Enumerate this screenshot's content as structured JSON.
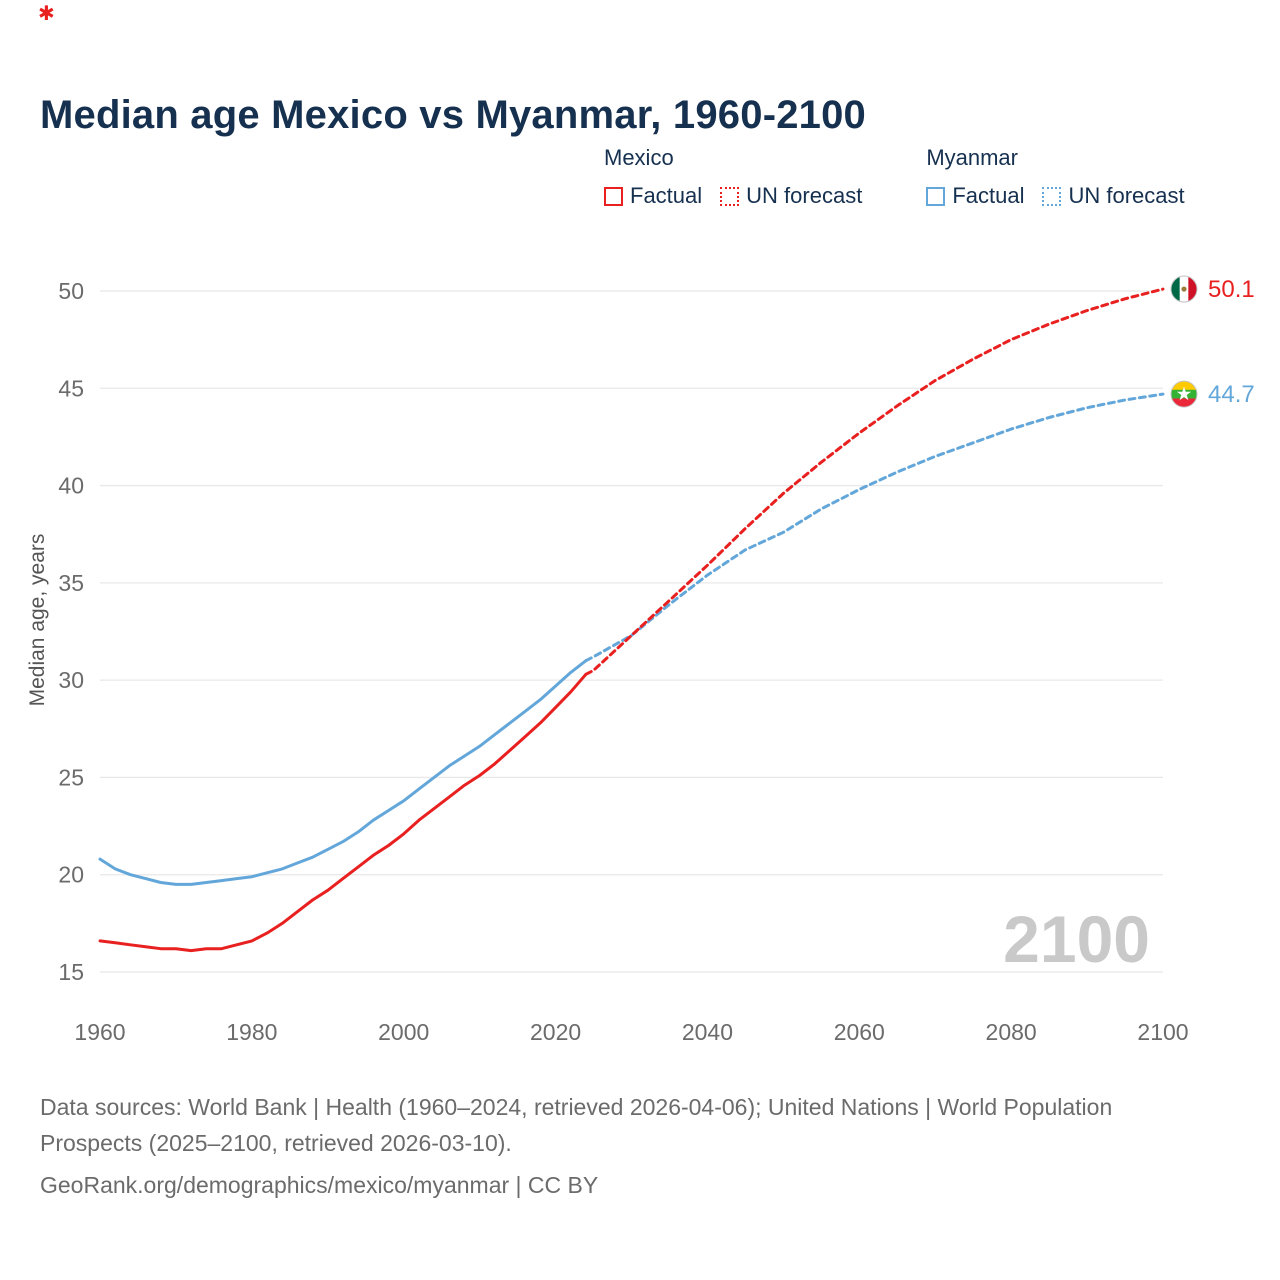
{
  "brand": {
    "icon_name": "georank-logo",
    "glyph": "✱"
  },
  "title": "Median age Mexico vs Myanmar, 1960-2100",
  "legend": {
    "groups": [
      {
        "label": "Mexico",
        "items": [
          {
            "label": "Factual",
            "style": "solid"
          },
          {
            "label": "UN forecast",
            "style": "dotted"
          }
        ]
      },
      {
        "label": "Myanmar",
        "items": [
          {
            "label": "Factual",
            "style": "solid"
          },
          {
            "label": "UN forecast",
            "style": "dotted"
          }
        ]
      }
    ]
  },
  "chart_data": {
    "type": "line",
    "title": "Median age Mexico vs Myanmar, 1960-2100",
    "xlabel": "",
    "ylabel": "Median age, years",
    "xlim": [
      1960,
      2100
    ],
    "ylim": [
      15,
      50
    ],
    "xticks": [
      1960,
      1980,
      2000,
      2020,
      2040,
      2060,
      2080,
      2100
    ],
    "yticks": [
      15,
      20,
      25,
      30,
      35,
      40,
      45,
      50
    ],
    "grid": "horizontal",
    "legend_position": "top-right",
    "watermark": "2100",
    "colors": {
      "mexico": "#e8201f",
      "myanmar": "#63a7da"
    },
    "series": [
      {
        "name": "Myanmar Factual",
        "country": "myanmar",
        "style": "solid",
        "points": [
          [
            1960,
            20.8
          ],
          [
            1962,
            20.3
          ],
          [
            1964,
            20.0
          ],
          [
            1966,
            19.8
          ],
          [
            1968,
            19.6
          ],
          [
            1970,
            19.5
          ],
          [
            1972,
            19.5
          ],
          [
            1974,
            19.6
          ],
          [
            1976,
            19.7
          ],
          [
            1978,
            19.8
          ],
          [
            1980,
            19.9
          ],
          [
            1982,
            20.1
          ],
          [
            1984,
            20.3
          ],
          [
            1986,
            20.6
          ],
          [
            1988,
            20.9
          ],
          [
            1990,
            21.3
          ],
          [
            1992,
            21.7
          ],
          [
            1994,
            22.2
          ],
          [
            1996,
            22.8
          ],
          [
            1998,
            23.3
          ],
          [
            2000,
            23.8
          ],
          [
            2002,
            24.4
          ],
          [
            2004,
            25.0
          ],
          [
            2006,
            25.6
          ],
          [
            2008,
            26.1
          ],
          [
            2010,
            26.6
          ],
          [
            2012,
            27.2
          ],
          [
            2014,
            27.8
          ],
          [
            2016,
            28.4
          ],
          [
            2018,
            29.0
          ],
          [
            2020,
            29.7
          ],
          [
            2022,
            30.4
          ],
          [
            2024,
            31.0
          ]
        ]
      },
      {
        "name": "Myanmar UN forecast",
        "country": "myanmar",
        "style": "dashed",
        "points": [
          [
            2024,
            31.0
          ],
          [
            2025,
            31.2
          ],
          [
            2030,
            32.3
          ],
          [
            2035,
            33.9
          ],
          [
            2040,
            35.4
          ],
          [
            2045,
            36.7
          ],
          [
            2050,
            37.6
          ],
          [
            2055,
            38.8
          ],
          [
            2060,
            39.8
          ],
          [
            2065,
            40.7
          ],
          [
            2070,
            41.5
          ],
          [
            2075,
            42.2
          ],
          [
            2080,
            42.9
          ],
          [
            2085,
            43.5
          ],
          [
            2090,
            44.0
          ],
          [
            2095,
            44.4
          ],
          [
            2100,
            44.7
          ]
        ]
      },
      {
        "name": "Mexico Factual",
        "country": "mexico",
        "style": "solid",
        "points": [
          [
            1960,
            16.6
          ],
          [
            1962,
            16.5
          ],
          [
            1964,
            16.4
          ],
          [
            1966,
            16.3
          ],
          [
            1968,
            16.2
          ],
          [
            1970,
            16.2
          ],
          [
            1972,
            16.1
          ],
          [
            1974,
            16.2
          ],
          [
            1976,
            16.2
          ],
          [
            1978,
            16.4
          ],
          [
            1980,
            16.6
          ],
          [
            1982,
            17.0
          ],
          [
            1984,
            17.5
          ],
          [
            1986,
            18.1
          ],
          [
            1988,
            18.7
          ],
          [
            1990,
            19.2
          ],
          [
            1992,
            19.8
          ],
          [
            1994,
            20.4
          ],
          [
            1996,
            21.0
          ],
          [
            1998,
            21.5
          ],
          [
            2000,
            22.1
          ],
          [
            2002,
            22.8
          ],
          [
            2004,
            23.4
          ],
          [
            2006,
            24.0
          ],
          [
            2008,
            24.6
          ],
          [
            2010,
            25.1
          ],
          [
            2012,
            25.7
          ],
          [
            2014,
            26.4
          ],
          [
            2016,
            27.1
          ],
          [
            2018,
            27.8
          ],
          [
            2020,
            28.6
          ],
          [
            2022,
            29.4
          ],
          [
            2024,
            30.3
          ]
        ]
      },
      {
        "name": "Mexico UN forecast",
        "country": "mexico",
        "style": "dashed",
        "points": [
          [
            2024,
            30.3
          ],
          [
            2025,
            30.5
          ],
          [
            2030,
            32.3
          ],
          [
            2035,
            34.1
          ],
          [
            2040,
            35.9
          ],
          [
            2045,
            37.8
          ],
          [
            2050,
            39.6
          ],
          [
            2055,
            41.2
          ],
          [
            2060,
            42.7
          ],
          [
            2065,
            44.1
          ],
          [
            2070,
            45.4
          ],
          [
            2075,
            46.5
          ],
          [
            2080,
            47.5
          ],
          [
            2085,
            48.3
          ],
          [
            2090,
            49.0
          ],
          [
            2095,
            49.6
          ],
          [
            2100,
            50.1
          ]
        ]
      }
    ],
    "end_labels": [
      {
        "country": "mexico",
        "label": "50.1",
        "value": 50.1,
        "flag": "mexico-flag-icon"
      },
      {
        "country": "myanmar",
        "label": "44.7",
        "value": 44.7,
        "flag": "myanmar-flag-icon"
      }
    ]
  },
  "footer": {
    "sources": "Data sources: World Bank | Health (1960–2024, retrieved 2026-04-06); United Nations | World Population Prospects (2025–2100, retrieved 2026-03-10).",
    "link": "GeoRank.org/demographics/mexico/myanmar | CC BY"
  }
}
